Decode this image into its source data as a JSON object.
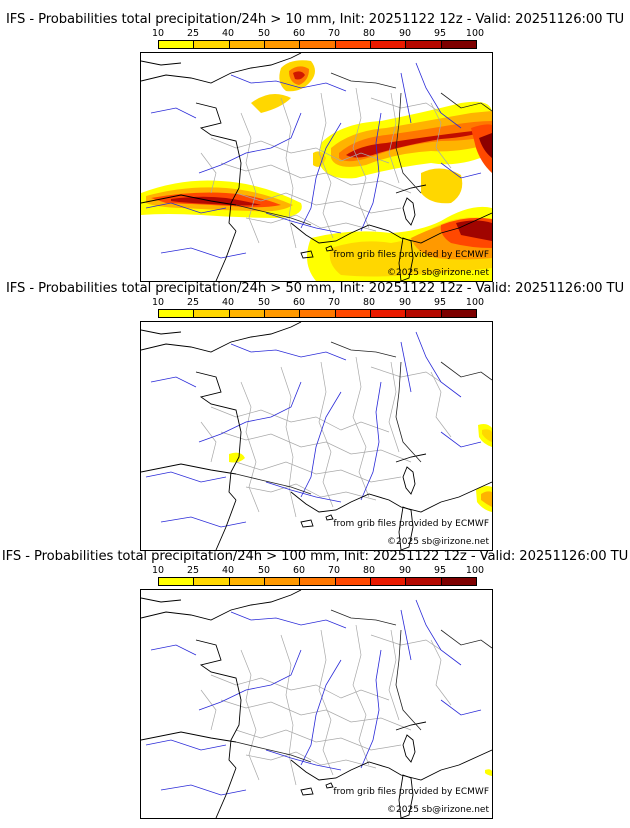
{
  "colorbar": {
    "ticks": [
      "10",
      "25",
      "40",
      "50",
      "60",
      "70",
      "80",
      "90",
      "95",
      "100"
    ],
    "colors": [
      "#ffff00",
      "#ffd700",
      "#ffb300",
      "#ff9900",
      "#ff7700",
      "#ff4800",
      "#ea1a00",
      "#b40800",
      "#7d0000"
    ]
  },
  "panels": [
    {
      "title": "IFS - Probabilities total precipitation/24h > 10 mm, Init: 20251122 12z - Valid: 20251126:00 TU",
      "credit_source": "from grib files provided by ECMWF",
      "credit_author": "©2025 sb@irizone.net"
    },
    {
      "title": "IFS - Probabilities total precipitation/24h > 50 mm, Init: 20251122 12z - Valid: 20251126:00 TU",
      "credit_source": "from grib files provided by ECMWF",
      "credit_author": "©2025 sb@irizone.net"
    },
    {
      "title": "IFS - Probabilities total precipitation/24h > 100 mm, Init: 20251122 12z - Valid: 20251126:00 TU",
      "credit_source": "from grib files provided by ECMWF",
      "credit_author": "©2025 sb@irizone.net"
    }
  ],
  "map_colors": {
    "coast": "#000000",
    "borders": "#999999",
    "rivers": "#2020d0"
  }
}
